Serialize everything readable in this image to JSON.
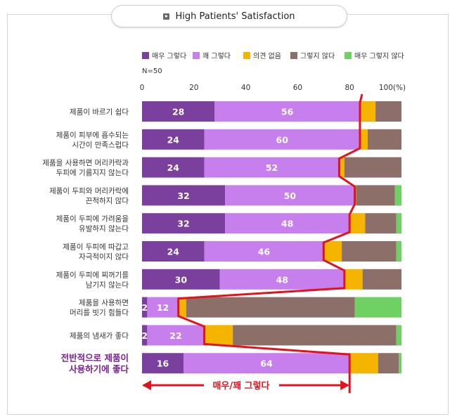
{
  "header": {
    "title": "High Patients' Satisfaction"
  },
  "chart_data": {
    "type": "bar",
    "orientation": "horizontal",
    "stacked": true,
    "sample_note": "N=50",
    "x_ticks": [
      "0",
      "20",
      "40",
      "60",
      "80",
      "100(%)"
    ],
    "xlim": [
      0,
      100
    ],
    "colors": [
      "#7b3f9e",
      "#c77fee",
      "#f5b400",
      "#8c6f68",
      "#6fd063"
    ],
    "label_colors": [
      "#ffffff",
      "#ffffff",
      "#000000",
      "#000000",
      "#000000"
    ],
    "series": [
      {
        "name": "매우 그렇다",
        "values": [
          28,
          24,
          24,
          32,
          32,
          24,
          30,
          2,
          2,
          16
        ]
      },
      {
        "name": "꽤 그렇다",
        "values": [
          56,
          60,
          52,
          50,
          48,
          46,
          48,
          12,
          22,
          64
        ]
      },
      {
        "name": "의견 없음",
        "values": [
          6,
          3,
          2,
          0.5,
          6,
          7,
          7,
          3,
          11,
          11
        ]
      },
      {
        "name": "그렇지 않다",
        "values": [
          10,
          13,
          22,
          15,
          12,
          21,
          15,
          65,
          63,
          8
        ]
      },
      {
        "name": "매우 그렇지 않다",
        "values": [
          0,
          0,
          0,
          2.5,
          2,
          2,
          0,
          18,
          2,
          1
        ]
      }
    ],
    "value_labels": [
      [
        "28",
        "56"
      ],
      [
        "24",
        "60"
      ],
      [
        "24",
        "52"
      ],
      [
        "32",
        "50"
      ],
      [
        "32",
        "48"
      ],
      [
        "24",
        "46"
      ],
      [
        "30",
        "48"
      ],
      [
        "2",
        "12"
      ],
      [
        "2",
        "22"
      ],
      [
        "16",
        "64"
      ]
    ],
    "categories": [
      [
        "제품이 바르기 쉽다"
      ],
      [
        "제품이 피부에 흡수되는",
        "시간이 만족스럽다"
      ],
      [
        "제품을 사용하면 머리카락과",
        "두피에 기름지지 않는다"
      ],
      [
        "제품이 두피와 머리카락에",
        "끈적하지 않다"
      ],
      [
        "제품이 두피에 가려움을",
        "유발하지 않는다"
      ],
      [
        "제품이 두피에 따갑고",
        "자극적이지 않다"
      ],
      [
        "제품이 두피에 찌꺼기를",
        "남기지 않는다"
      ],
      [
        "제품을 사용하면",
        "머리를 빗기 힘들다"
      ],
      [
        "제품의 냄새가 좋다"
      ],
      [
        "전반적으로 제품이",
        "사용하기에 좋다"
      ]
    ],
    "highlight_category_index": 9,
    "highlight_color": "#7a1f8f",
    "line_color": "#e0141e",
    "arrow_label": "매우/꽤 그렇다"
  }
}
